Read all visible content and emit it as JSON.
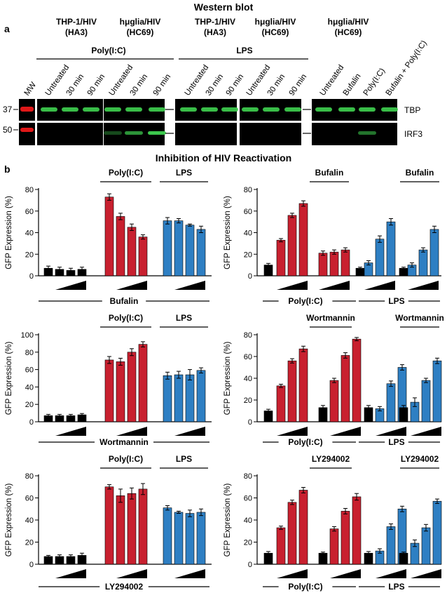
{
  "figure": {
    "title_a": "Western blot",
    "title_b": "Inhibition of HIV Reactivation",
    "panel_a": "a",
    "panel_b": "b"
  },
  "colors": {
    "black": "#000000",
    "red": "#c8202f",
    "blue": "#2e7fc3",
    "green": "#3fd150",
    "marker": "#e01818"
  },
  "western": {
    "groups": [
      {
        "line1": "THP-1/HIV",
        "line2": "(HA3)"
      },
      {
        "line1": "hμglia/HIV",
        "line2": "(HC69)"
      },
      {
        "line1": "THP-1/HIV",
        "line2": "(HA3)"
      },
      {
        "line1": "hμglia/HIV",
        "line2": "(HC69)"
      },
      {
        "line1": "hμglia/HIV",
        "line2": "(HC69)"
      }
    ],
    "treatments": [
      "Poly(I:C)",
      "LPS"
    ],
    "lanes": [
      "MW",
      "Untreated",
      "30 min",
      "90 min",
      "Untreated",
      "30 min",
      "90 min",
      "Untreated",
      "30 min",
      "90 min",
      "Untreated",
      "30 min",
      "90 min",
      "Untreated",
      "Bufalin",
      "Poly(I:C)",
      "Bufalin + Poly(I:C)"
    ],
    "mw": [
      "37",
      "50"
    ],
    "bands": [
      "TBP",
      "IRF3"
    ]
  },
  "y_axis_label": "GFP Expression (%)",
  "chart_data": [
    {
      "type": "bar",
      "ylabel": "GFP Expression (%)",
      "ylim": [
        0,
        80
      ],
      "yticks": [
        0,
        20,
        40,
        60,
        80
      ],
      "headers": [
        "Poly(I:C)",
        "LPS"
      ],
      "bottom_labels": [
        "Bufalin"
      ],
      "groups": [
        {
          "color": "black",
          "values": [
            7,
            6,
            5,
            6
          ],
          "errors": [
            2,
            2,
            2,
            2
          ]
        },
        {
          "color": "red",
          "values": [
            73,
            55,
            45,
            36
          ],
          "errors": [
            3,
            3,
            3,
            2
          ]
        },
        {
          "color": "blue",
          "values": [
            51,
            51,
            47,
            43
          ],
          "errors": [
            3,
            2,
            1,
            3
          ]
        }
      ]
    },
    {
      "type": "bar",
      "ylabel": "GFP Expression (%)",
      "ylim": [
        0,
        80
      ],
      "yticks": [
        0,
        20,
        40,
        60,
        80
      ],
      "headers": [
        "Bufalin",
        "Bufalin"
      ],
      "bottom_labels": [
        "Poly(I:C)",
        "LPS"
      ],
      "groups": [
        {
          "color": "black",
          "values": [
            10
          ],
          "errors": [
            1.5
          ]
        },
        {
          "color": "red",
          "values": [
            33,
            56,
            67
          ],
          "errors": [
            1.5,
            2,
            2.5
          ]
        },
        {
          "color": "red",
          "values": [
            21,
            22,
            24
          ],
          "errors": [
            2,
            2,
            2
          ]
        },
        {
          "color": "black",
          "values": [
            7
          ],
          "errors": [
            1
          ]
        },
        {
          "color": "blue",
          "values": [
            12,
            34,
            50
          ],
          "errors": [
            2,
            3,
            3
          ]
        },
        {
          "color": "black",
          "values": [
            7
          ],
          "errors": [
            1
          ]
        },
        {
          "color": "blue",
          "values": [
            10,
            24,
            43
          ],
          "errors": [
            2,
            2,
            3
          ]
        }
      ]
    },
    {
      "type": "bar",
      "ylabel": "GFP Expression (%)",
      "ylim": [
        0,
        100
      ],
      "yticks": [
        0,
        20,
        40,
        60,
        80,
        100
      ],
      "headers": [
        "Poly(I:C)",
        "LPS"
      ],
      "bottom_labels": [
        "Wortmannin"
      ],
      "groups": [
        {
          "color": "black",
          "values": [
            7,
            7,
            7,
            8
          ],
          "errors": [
            1.5,
            1.5,
            1.5,
            1.5
          ]
        },
        {
          "color": "red",
          "values": [
            71,
            69,
            80,
            89
          ],
          "errors": [
            4,
            4,
            4,
            3
          ]
        },
        {
          "color": "blue",
          "values": [
            53,
            54,
            54,
            59
          ],
          "errors": [
            4,
            4,
            6,
            3
          ]
        }
      ]
    },
    {
      "type": "bar",
      "ylabel": "GFP Expression (%)",
      "ylim": [
        0,
        80
      ],
      "yticks": [
        0,
        20,
        40,
        60,
        80
      ],
      "headers": [
        "Wortmannin",
        "Wortmannin"
      ],
      "bottom_labels": [
        "Poly(I:C)",
        "LPS"
      ],
      "groups": [
        {
          "color": "black",
          "values": [
            10
          ],
          "errors": [
            1.5
          ]
        },
        {
          "color": "red",
          "values": [
            33,
            56,
            67
          ],
          "errors": [
            1.5,
            2,
            2.5
          ]
        },
        {
          "color": "black",
          "values": [
            13
          ],
          "errors": [
            2
          ]
        },
        {
          "color": "red",
          "values": [
            38,
            61,
            76
          ],
          "errors": [
            2,
            2.5,
            1.5
          ]
        },
        {
          "color": "black",
          "values": [
            13
          ],
          "errors": [
            2
          ]
        },
        {
          "color": "blue",
          "values": [
            12,
            35,
            50
          ],
          "errors": [
            2,
            2.5,
            2.5
          ]
        },
        {
          "color": "black",
          "values": [
            13
          ],
          "errors": [
            2
          ]
        },
        {
          "color": "blue",
          "values": [
            18,
            38,
            56
          ],
          "errors": [
            4,
            2,
            2.5
          ]
        }
      ]
    },
    {
      "type": "bar",
      "ylabel": "GFP Expression (%)",
      "ylim": [
        0,
        80
      ],
      "yticks": [
        0,
        20,
        40,
        60,
        80
      ],
      "headers": [
        "Poly(I:C)",
        "LPS"
      ],
      "bottom_labels": [
        "LY294002"
      ],
      "groups": [
        {
          "color": "black",
          "values": [
            7,
            7,
            7,
            8
          ],
          "errors": [
            1,
            1.5,
            1.5,
            2
          ]
        },
        {
          "color": "red",
          "values": [
            70,
            62,
            64,
            68
          ],
          "errors": [
            2,
            6,
            5,
            5
          ]
        },
        {
          "color": "blue",
          "values": [
            51,
            47,
            46,
            47
          ],
          "errors": [
            2,
            1,
            3,
            3
          ]
        }
      ]
    },
    {
      "type": "bar",
      "ylabel": "GFP Expression (%)",
      "ylim": [
        0,
        80
      ],
      "yticks": [
        0,
        20,
        40,
        60,
        80
      ],
      "headers": [
        "LY294002",
        "LY294002"
      ],
      "bottom_labels": [
        "Poly(I:C)",
        "LPS"
      ],
      "groups": [
        {
          "color": "black",
          "values": [
            10
          ],
          "errors": [
            1.5
          ]
        },
        {
          "color": "red",
          "values": [
            33,
            56,
            67
          ],
          "errors": [
            1.5,
            2,
            2.5
          ]
        },
        {
          "color": "black",
          "values": [
            10
          ],
          "errors": [
            1
          ]
        },
        {
          "color": "red",
          "values": [
            32,
            48,
            61
          ],
          "errors": [
            2,
            2.5,
            3
          ]
        },
        {
          "color": "black",
          "values": [
            10
          ],
          "errors": [
            1.5
          ]
        },
        {
          "color": "blue",
          "values": [
            12,
            34,
            50
          ],
          "errors": [
            2,
            2.5,
            2.5
          ]
        },
        {
          "color": "black",
          "values": [
            10
          ],
          "errors": [
            1
          ]
        },
        {
          "color": "blue",
          "values": [
            19,
            33,
            57
          ],
          "errors": [
            3,
            3,
            2
          ]
        }
      ]
    }
  ]
}
